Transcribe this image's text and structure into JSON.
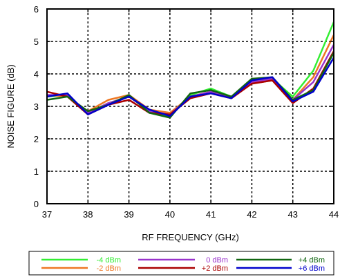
{
  "chart_data": {
    "type": "line",
    "title": "",
    "xlabel": "RF FREQUENCY (GHz)",
    "ylabel": "NOISE FIGURE (dB)",
    "xlim": [
      37,
      44
    ],
    "ylim": [
      0,
      6
    ],
    "xticks": [
      "37",
      "38",
      "39",
      "40",
      "41",
      "42",
      "43",
      "44"
    ],
    "yticks": [
      "0",
      "1",
      "2",
      "3",
      "4",
      "5",
      "6"
    ],
    "grid": true,
    "legend_position": "bottom",
    "x": [
      37,
      37.5,
      38,
      38.5,
      39,
      39.5,
      40,
      40.5,
      41,
      41.5,
      42,
      42.5,
      43,
      43.5,
      44
    ],
    "series": [
      {
        "name": "-4 dBm",
        "color": "#33ee33",
        "values": [
          3.3,
          3.35,
          2.8,
          3.1,
          3.3,
          2.85,
          2.7,
          3.35,
          3.55,
          3.3,
          3.8,
          3.85,
          3.3,
          4.1,
          5.6
        ]
      },
      {
        "name": "-2 dBm",
        "color": "#ee7722",
        "values": [
          3.35,
          3.3,
          2.85,
          3.2,
          3.35,
          2.9,
          2.8,
          3.3,
          3.45,
          3.3,
          3.7,
          3.8,
          3.2,
          3.9,
          5.2
        ]
      },
      {
        "name": "0 dBm",
        "color": "#9933cc",
        "values": [
          3.35,
          3.35,
          2.8,
          3.1,
          3.3,
          2.85,
          2.75,
          3.3,
          3.45,
          3.3,
          3.75,
          3.85,
          3.2,
          3.75,
          4.9
        ]
      },
      {
        "name": "+2 dBm",
        "color": "#aa0000",
        "values": [
          3.45,
          3.3,
          2.75,
          3.05,
          3.2,
          2.8,
          2.75,
          3.25,
          3.4,
          3.25,
          3.7,
          3.8,
          3.1,
          3.55,
          4.7
        ]
      },
      {
        "name": "+4 dBm",
        "color": "#116611",
        "values": [
          3.2,
          3.3,
          2.85,
          3.05,
          3.35,
          2.8,
          2.65,
          3.4,
          3.5,
          3.3,
          3.85,
          3.9,
          3.2,
          3.5,
          4.65
        ]
      },
      {
        "name": "+6 dBm",
        "color": "#0000cc",
        "values": [
          3.3,
          3.4,
          2.75,
          3.05,
          3.3,
          2.9,
          2.7,
          3.3,
          3.4,
          3.25,
          3.8,
          3.9,
          3.15,
          3.45,
          4.5
        ]
      }
    ]
  }
}
